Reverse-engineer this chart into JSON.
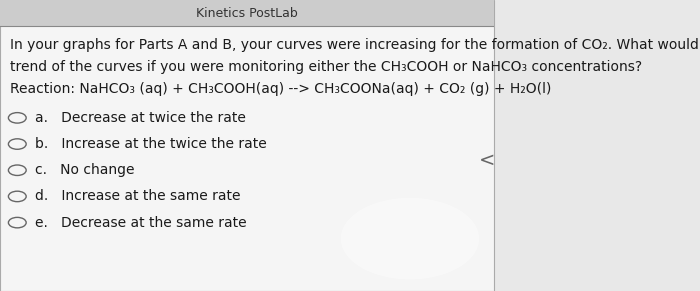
{
  "bg_color": "#e8e8e8",
  "card_color": "#f5f5f5",
  "header_text": "Kinetics PostLab",
  "question_line1": "In your graphs for Parts A and B, your curves were increasing for the formation of CO₂. What would be the",
  "question_line2": "trend of the curves if you were monitoring either the CH₃COOH or NaHCO₃ concentrations?",
  "reaction_label": "Reaction: NaHCO₃ (aq) + CH₃COOH(aq) --> CH₃COONa(aq) + CO₂ (g) + H₂O(l)",
  "options": [
    "a.   Decrease at twice the rate",
    "b.   Increase at the twice the rate",
    "c.   No change",
    "d.   Increase at the same rate",
    "e.   Decrease at the same rate"
  ],
  "text_color": "#1a1a1a",
  "option_font_size": 10,
  "question_font_size": 10,
  "reaction_font_size": 10
}
